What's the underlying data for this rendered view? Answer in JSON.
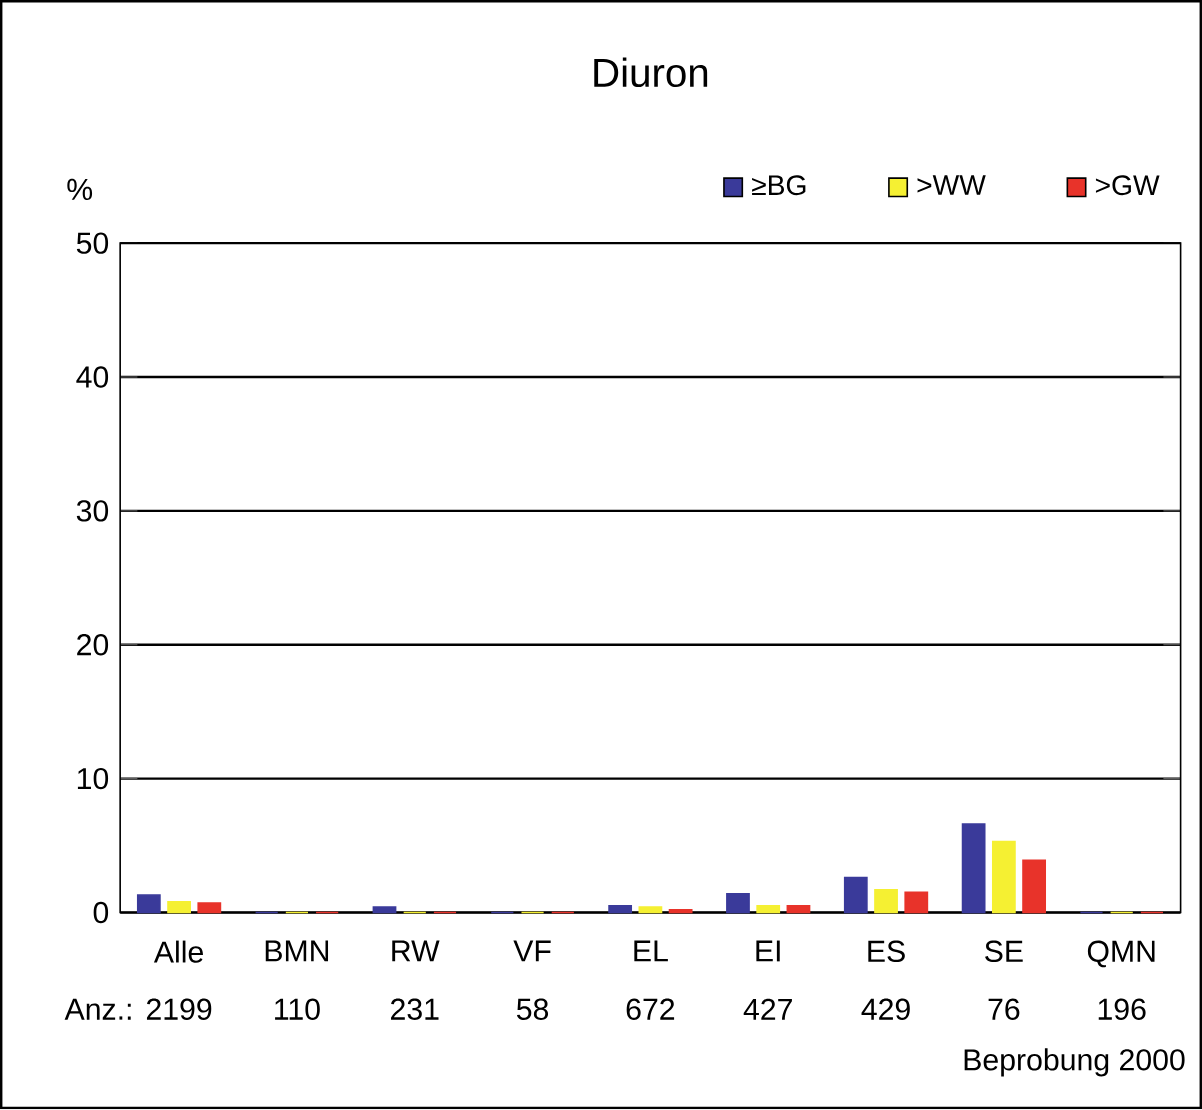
{
  "chart_data": {
    "type": "bar",
    "title": "Diuron",
    "ylabel": "%",
    "categories": [
      "Alle",
      "BMN",
      "RW",
      "VF",
      "EL",
      "EI",
      "ES",
      "SE",
      "QMN"
    ],
    "series": [
      {
        "name": "≥BG",
        "color": "#3a3a9a",
        "values": [
          1.3,
          0,
          0.4,
          0,
          0.5,
          1.4,
          2.6,
          6.6,
          0
        ]
      },
      {
        "name": ">WW",
        "color": "#f5f032",
        "values": [
          0.8,
          0,
          0,
          0,
          0.4,
          0.5,
          1.7,
          5.3,
          0
        ]
      },
      {
        "name": ">GW",
        "color": "#e8332a",
        "values": [
          0.7,
          0,
          0,
          0,
          0.2,
          0.5,
          1.5,
          3.9,
          0
        ]
      }
    ],
    "ylim": [
      0,
      50
    ],
    "yticks": [
      0,
      10,
      20,
      30,
      40,
      50
    ],
    "grid": "y",
    "legend": "top right",
    "annotations": [
      "Anz.:",
      "2199",
      "110",
      "231",
      "58",
      "672",
      "427",
      "429",
      "76",
      "196",
      "Beprobung 2000"
    ]
  }
}
